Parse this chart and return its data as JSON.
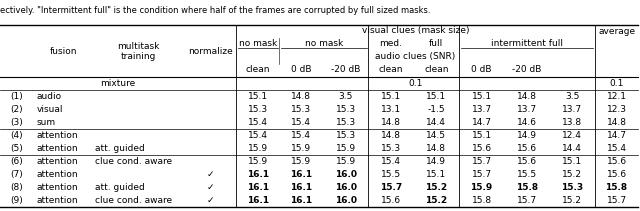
{
  "caption": "ectively. \"Intermittent full\" is the condition where half of the frames are corrupted by full sized masks.",
  "rows": [
    {
      "idx": "(1)",
      "fusion": "audio",
      "multitask": "",
      "normalize": "",
      "vals": [
        "15.1",
        "14.8",
        "3.5",
        "15.1",
        "15.1",
        "15.1",
        "14.8",
        "3.5",
        "12.1"
      ],
      "bold": []
    },
    {
      "idx": "(2)",
      "fusion": "visual",
      "multitask": "",
      "normalize": "",
      "vals": [
        "15.3",
        "15.3",
        "15.3",
        "13.1",
        "-1.5",
        "13.7",
        "13.7",
        "13.7",
        "12.3"
      ],
      "bold": []
    },
    {
      "idx": "(3)",
      "fusion": "sum",
      "multitask": "",
      "normalize": "",
      "vals": [
        "15.4",
        "15.4",
        "15.3",
        "14.8",
        "14.4",
        "14.7",
        "14.6",
        "13.8",
        "14.8"
      ],
      "bold": []
    },
    {
      "idx": "(4)",
      "fusion": "attention",
      "multitask": "",
      "normalize": "",
      "vals": [
        "15.4",
        "15.4",
        "15.3",
        "14.8",
        "14.5",
        "15.1",
        "14.9",
        "12.4",
        "14.7"
      ],
      "bold": []
    },
    {
      "idx": "(5)",
      "fusion": "attention",
      "multitask": "att. guided",
      "normalize": "",
      "vals": [
        "15.9",
        "15.9",
        "15.9",
        "15.3",
        "14.8",
        "15.6",
        "15.6",
        "14.4",
        "15.4"
      ],
      "bold": []
    },
    {
      "idx": "(6)",
      "fusion": "attention",
      "multitask": "clue cond. aware",
      "normalize": "",
      "vals": [
        "15.9",
        "15.9",
        "15.9",
        "15.4",
        "14.9",
        "15.7",
        "15.6",
        "15.1",
        "15.6"
      ],
      "bold": []
    },
    {
      "idx": "(7)",
      "fusion": "attention",
      "multitask": "",
      "normalize": "✓",
      "vals": [
        "16.1",
        "16.1",
        "16.0",
        "15.5",
        "15.1",
        "15.7",
        "15.5",
        "15.2",
        "15.6"
      ],
      "bold": [
        0,
        1,
        2
      ]
    },
    {
      "idx": "(8)",
      "fusion": "attention",
      "multitask": "att. guided",
      "normalize": "✓",
      "vals": [
        "16.1",
        "16.1",
        "16.0",
        "15.7",
        "15.2",
        "15.9",
        "15.8",
        "15.3",
        "15.8"
      ],
      "bold": [
        0,
        1,
        2,
        3,
        4,
        5,
        6,
        7,
        8
      ]
    },
    {
      "idx": "(9)",
      "fusion": "attention",
      "multitask": "clue cond. aware",
      "normalize": "✓",
      "vals": [
        "16.1",
        "16.1",
        "16.0",
        "15.6",
        "15.2",
        "15.8",
        "15.7",
        "15.2",
        "15.7"
      ],
      "bold": [
        0,
        1,
        2,
        4
      ]
    }
  ],
  "sep_after_rows": [
    3,
    5
  ],
  "figsize": [
    6.4,
    2.11
  ],
  "dpi": 100,
  "font_size": 6.5,
  "header_font_size": 6.5
}
